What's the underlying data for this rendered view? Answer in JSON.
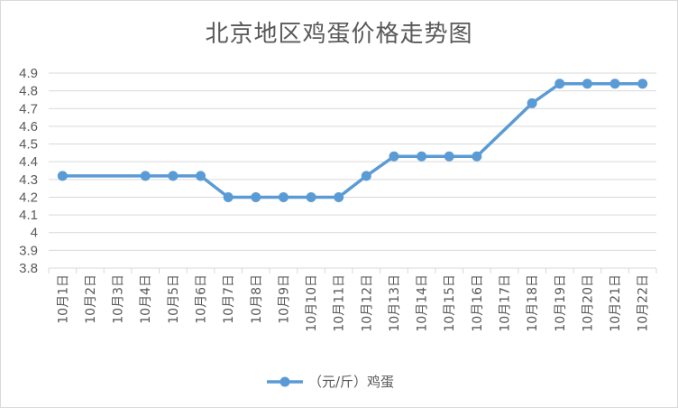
{
  "chart_data": {
    "type": "line",
    "title": "北京地区鸡蛋价格走势图",
    "categories": [
      "10月1日",
      "10月2日",
      "10月3日",
      "10月4日",
      "10月5日",
      "10月6日",
      "10月7日",
      "10月8日",
      "10月9日",
      "10月10日",
      "10月11日",
      "10月12日",
      "10月13日",
      "10月14日",
      "10月15日",
      "10月16日",
      "10月17日",
      "10月18日",
      "10月19日",
      "10月20日",
      "10月21日",
      "10月22日"
    ],
    "series": [
      {
        "name": "（元/斤）鸡蛋",
        "values": [
          4.32,
          null,
          null,
          4.32,
          4.32,
          4.32,
          4.2,
          4.2,
          4.2,
          4.2,
          4.2,
          4.32,
          4.43,
          4.43,
          4.43,
          4.43,
          null,
          4.73,
          4.84,
          4.84,
          4.84,
          4.84
        ],
        "color": "#5b9bd5"
      }
    ],
    "ylim": [
      3.8,
      4.9
    ],
    "yticks": [
      "3.8",
      "3.9",
      "4",
      "4.1",
      "4.2",
      "4.3",
      "4.4",
      "4.5",
      "4.6",
      "4.7",
      "4.8",
      "4.9"
    ],
    "grid": true,
    "legend": "bottom",
    "gaps_connected": true
  }
}
